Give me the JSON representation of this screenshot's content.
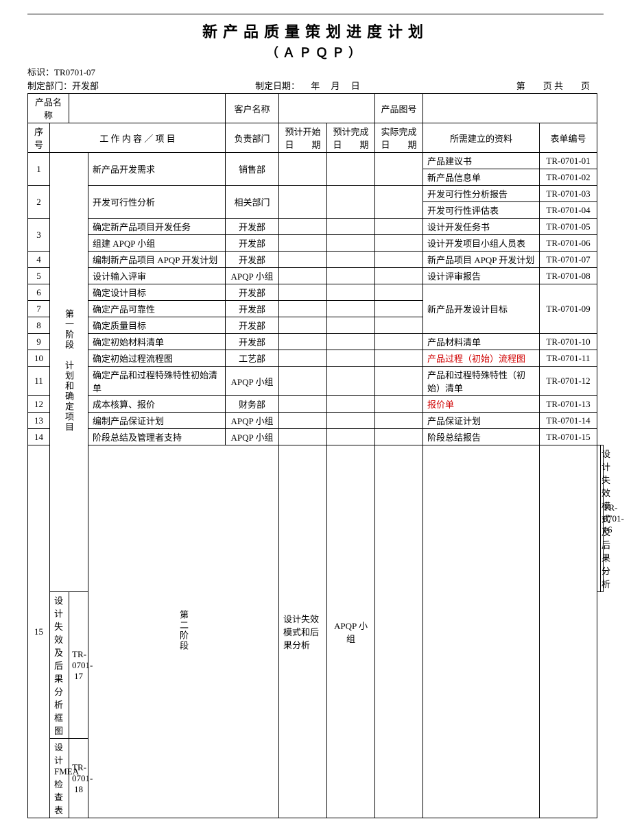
{
  "header": {
    "title": "新产品质量策划进度计划",
    "subtitle": "（ＡＰＱＰ）",
    "id_label": "标识：",
    "id_value": "TR0701-07",
    "dept_label": "制定部门：",
    "dept_value": "开发部",
    "date_label": "制定日期：",
    "date_y": "年",
    "date_m": "月",
    "date_d": "日",
    "page_label": "第　　页 共　　页"
  },
  "info": {
    "product_name_label": "产品名称",
    "customer_name_label": "客户名称",
    "drawing_no_label": "产品图号"
  },
  "cols": {
    "seq": "序号",
    "item": "工 作 内 容 ／ 项 目",
    "dept": "负责部门",
    "plan_start": "预计开始日　　期",
    "plan_end": "预计完成日　　期",
    "actual_end": "实际完成日　　期",
    "docs": "所需建立的资料",
    "form": "表单编号"
  },
  "stage1_label": "第一阶段　计划和确定项目",
  "stage2_label": "第二阶段",
  "rows": [
    {
      "seq": "1",
      "item": "新产品开发需求",
      "dept": "销售部",
      "docs": [
        {
          "t": "产品建议书"
        },
        {
          "t": "新产品信息单"
        }
      ],
      "forms": [
        "TR-0701-01",
        "TR-0701-02"
      ]
    },
    {
      "seq": "2",
      "item": "开发可行性分析",
      "dept": "相关部门",
      "docs": [
        {
          "t": "开发可行性分析报告"
        },
        {
          "t": "开发可行性评估表"
        }
      ],
      "forms": [
        "TR-0701-03",
        "TR-0701-04"
      ]
    },
    {
      "seq": "3a",
      "item": "确定新产品项目开发任务",
      "dept": "开发部",
      "docs": [
        {
          "t": "设计开发任务书"
        }
      ],
      "forms": [
        "TR-0701-05"
      ]
    },
    {
      "seq": "3b",
      "item": "组建 APQP 小组",
      "dept": "开发部",
      "docs": [
        {
          "t": "设计开发项目小组人员表"
        }
      ],
      "forms": [
        "TR-0701-06"
      ]
    },
    {
      "seq": "4",
      "item": "编制新产品项目 APQP 开发计划",
      "dept": "开发部",
      "docs": [
        {
          "t": "新产品项目 APQP 开发计划"
        }
      ],
      "forms": [
        "TR-0701-07"
      ]
    },
    {
      "seq": "5",
      "item": "设计输入评审",
      "dept": "APQP 小组",
      "docs": [
        {
          "t": "设计评审报告"
        }
      ],
      "forms": [
        "TR-0701-08"
      ]
    },
    {
      "seq": "6",
      "item": "确定设计目标",
      "dept": "开发部"
    },
    {
      "seq": "7",
      "item": "确定产品可靠性",
      "dept": "开发部"
    },
    {
      "seq": "8",
      "item": "确定质量目标",
      "dept": "开发部"
    },
    {
      "seq": "g678",
      "docs": [
        {
          "t": "新产品开发设计目标"
        }
      ],
      "forms": [
        "TR-0701-09"
      ]
    },
    {
      "seq": "9",
      "item": "确定初始材料清单",
      "dept": "开发部",
      "docs": [
        {
          "t": "产品材料清单"
        }
      ],
      "forms": [
        "TR-0701-10"
      ]
    },
    {
      "seq": "10",
      "item": "确定初始过程流程图",
      "dept": "工艺部",
      "docs": [
        {
          "t": "产品过程（初始）流程图",
          "red": true
        }
      ],
      "forms": [
        "TR-0701-11"
      ]
    },
    {
      "seq": "11",
      "item": "确定产品和过程特殊特性初始清单",
      "dept": "APQP 小组",
      "docs": [
        {
          "t": "产品和过程特殊特性（初始）清单"
        }
      ],
      "forms": [
        "TR-0701-12"
      ]
    },
    {
      "seq": "12",
      "item": "成本核算、报价",
      "dept": "财务部",
      "docs": [
        {
          "t": "报价单",
          "red": true
        }
      ],
      "forms": [
        "TR-0701-13"
      ]
    },
    {
      "seq": "13",
      "item": "编制产品保证计划",
      "dept": "APQP 小组",
      "docs": [
        {
          "t": "产品保证计划"
        }
      ],
      "forms": [
        "TR-0701-14"
      ]
    },
    {
      "seq": "14",
      "item": "阶段总结及管理者支持",
      "dept": "APQP 小组",
      "docs": [
        {
          "t": "阶段总结报告"
        }
      ],
      "forms": [
        "TR-0701-15"
      ]
    },
    {
      "seq": "15",
      "item": "设计失效模式和后果分析",
      "dept": "APQP 小组",
      "docs": [
        {
          "t": "设计失效模式及后果分析"
        },
        {
          "t": "设计失效及后果分析框图"
        },
        {
          "t": "设计 FMEA 检查表"
        }
      ],
      "forms": [
        "TR-0701-16",
        "TR-0701-17",
        "TR-0701-18"
      ]
    }
  ]
}
